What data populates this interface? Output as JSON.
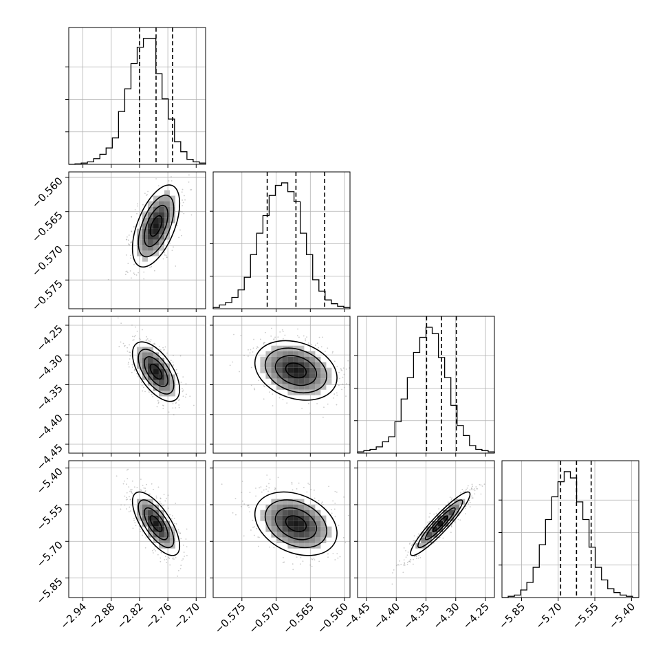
{
  "chart_data": {
    "type": "corner",
    "parameters": [
      {
        "range": [
          -2.97,
          -2.68
        ],
        "ticks": [
          "−2.94",
          "−2.88",
          "−2.82",
          "−2.76",
          "−2.70"
        ],
        "tick_values": [
          -2.94,
          -2.88,
          -2.82,
          -2.76,
          -2.7
        ],
        "quantiles": [
          -2.82,
          -2.785,
          -2.75
        ],
        "hist": [
          0,
          0.004,
          0.01,
          0.02,
          0.045,
          0.08,
          0.13,
          0.21,
          0.42,
          0.6,
          0.8,
          0.93,
          1.0,
          1.0,
          0.72,
          0.52,
          0.36,
          0.18,
          0.1,
          0.04,
          0.02,
          0.01
        ]
      },
      {
        "range": [
          -0.5792,
          -0.5592
        ],
        "ticks": [
          "−0.575",
          "−0.570",
          "−0.565",
          "−0.560"
        ],
        "tick_values": [
          -0.575,
          -0.57,
          -0.565,
          -0.56
        ],
        "quantiles": [
          -0.5713,
          -0.5671,
          -0.5629
        ],
        "hist": [
          0.01,
          0.03,
          0.05,
          0.09,
          0.15,
          0.25,
          0.43,
          0.6,
          0.74,
          0.9,
          0.98,
          1.0,
          0.93,
          0.85,
          0.6,
          0.43,
          0.23,
          0.14,
          0.07,
          0.04,
          0.02,
          0.01
        ]
      },
      {
        "range": [
          -4.465,
          -4.235
        ],
        "ticks": [
          "−4.45",
          "−4.40",
          "−4.35",
          "−4.30",
          "−4.25"
        ],
        "tick_values": [
          -4.45,
          -4.4,
          -4.35,
          -4.3,
          -4.25
        ],
        "quantiles": [
          -4.349,
          -4.324,
          -4.299
        ],
        "hist": [
          0.01,
          0.02,
          0.03,
          0.05,
          0.09,
          0.13,
          0.25,
          0.43,
          0.6,
          0.8,
          0.92,
          1.0,
          0.95,
          0.76,
          0.6,
          0.38,
          0.22,
          0.14,
          0.06,
          0.03,
          0.02,
          0.01
        ]
      },
      {
        "range": [
          -5.93,
          -5.37
        ],
        "ticks": [
          "−5.85",
          "−5.70",
          "−5.55",
          "−5.40"
        ],
        "tick_values": [
          -5.85,
          -5.7,
          -5.55,
          -5.4
        ],
        "quantiles": [
          -5.69,
          -5.625,
          -5.565
        ],
        "hist": [
          0,
          0.01,
          0.02,
          0.06,
          0.12,
          0.24,
          0.42,
          0.62,
          0.8,
          0.92,
          1.0,
          0.95,
          0.76,
          0.62,
          0.4,
          0.24,
          0.14,
          0.07,
          0.04,
          0.02,
          0.01,
          0
        ]
      }
    ],
    "pairs": [
      {
        "row": 1,
        "col": 0,
        "mean": [
          -2.785,
          -0.5671
        ],
        "std": [
          0.025,
          0.003
        ],
        "corr": 0.55
      },
      {
        "row": 2,
        "col": 0,
        "mean": [
          -2.785,
          -4.328
        ],
        "std": [
          0.025,
          0.025
        ],
        "corr": -0.6
      },
      {
        "row": 2,
        "col": 1,
        "mean": [
          -0.5671,
          -4.326
        ],
        "std": [
          0.003,
          0.025
        ],
        "corr": -0.25
      },
      {
        "row": 3,
        "col": 0,
        "mean": [
          -2.785,
          -5.628
        ],
        "std": [
          0.025,
          0.065
        ],
        "corr": -0.7
      },
      {
        "row": 3,
        "col": 1,
        "mean": [
          -0.5671,
          -5.628
        ],
        "std": [
          0.003,
          0.065
        ],
        "corr": -0.3
      },
      {
        "row": 3,
        "col": 2,
        "mean": [
          -4.326,
          -5.628
        ],
        "std": [
          0.025,
          0.065
        ],
        "corr": 0.93
      }
    ],
    "grid": true
  },
  "colors": {
    "line": "#000000",
    "grid": "#b0b0b0",
    "scatter": "#8c8c8c",
    "density_dark": "#000000",
    "density_light": "#ffffff"
  }
}
